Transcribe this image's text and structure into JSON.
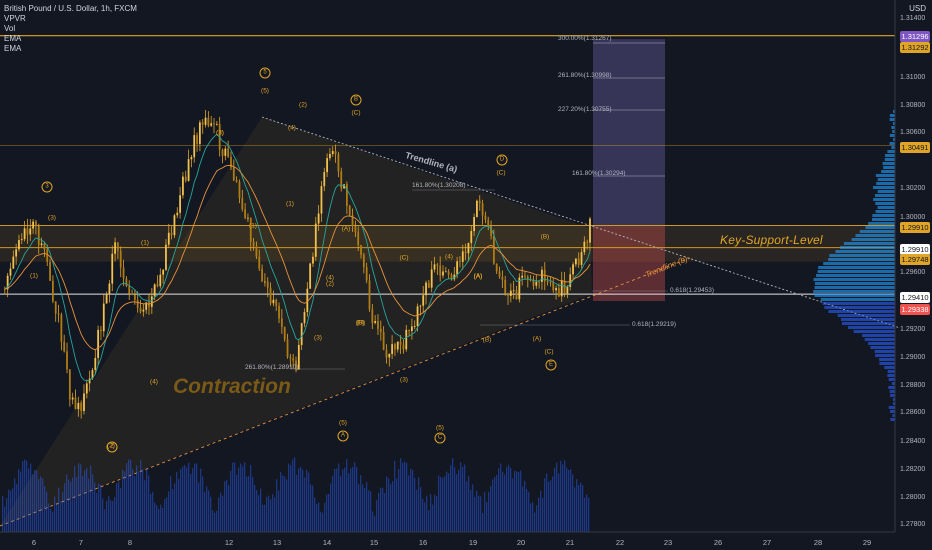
{
  "legend": {
    "symbol": "British Pound / U.S. Dollar, 1h, FXCM",
    "indicators": [
      "VPVR",
      "Vol",
      "EMA",
      "EMA"
    ]
  },
  "axis": {
    "currency": "USD",
    "price_ticks": [
      "1.31400",
      "1.31000",
      "1.30800",
      "1.30600",
      "1.30200",
      "1.30000",
      "1.29600",
      "1.29200",
      "1.29000",
      "1.28800",
      "1.28600",
      "1.28400",
      "1.28200",
      "1.28000",
      "1.27800"
    ],
    "date_ticks": [
      "6",
      "7",
      "8",
      "12",
      "13",
      "14",
      "15",
      "16",
      "19",
      "20",
      "21",
      "22",
      "23",
      "26",
      "27",
      "28",
      "29"
    ]
  },
  "price_tags": [
    {
      "label": "1.31296",
      "bg": "#7e57c2",
      "fg": "#ffffff"
    },
    {
      "label": "1.31292",
      "bg": "#e0a526",
      "fg": "#131722"
    },
    {
      "label": "1.30491",
      "bg": "#e0a526",
      "fg": "#131722"
    },
    {
      "label": "1.29910",
      "bg": "#e0a526",
      "fg": "#131722"
    },
    {
      "label": "1.29910",
      "bg": "#ffffff",
      "fg": "#131722"
    },
    {
      "label": "1.29748",
      "bg": "#e0a526",
      "fg": "#131722"
    },
    {
      "label": "1.29410",
      "bg": "#ffffff",
      "fg": "#131722"
    },
    {
      "label": "1.29338",
      "bg": "#ef5350",
      "fg": "#ffffff"
    }
  ],
  "annotations": {
    "key_support": "Key-Support-Level",
    "contraction": "Contraction",
    "trendline_a": "Trendline (a)",
    "trendline_b": "Trendline (b)"
  },
  "fib_labels": [
    "300.00%(1.31267)",
    "261.80%(1.30998)",
    "227.20%(1.30755)",
    "161.80%(1.30294)",
    "161.80%(1.30208)",
    "261.80%(1.28910)",
    "0.618(1.29453)",
    "0.618(1.29219)"
  ],
  "wave_labels": [
    {
      "text": "3",
      "circle": true
    },
    {
      "text": "(3)"
    },
    {
      "text": "(1)"
    },
    {
      "text": "(1)"
    },
    {
      "text": "(2)"
    },
    {
      "text": "(4)"
    },
    {
      "text": "2",
      "circle": true
    },
    {
      "text": "5",
      "circle": true
    },
    {
      "text": "(5)"
    },
    {
      "text": "(3)"
    },
    {
      "text": "(4)"
    },
    {
      "text": "(1)"
    },
    {
      "text": "(2)"
    },
    {
      "text": "(1)"
    },
    {
      "text": "(2)"
    },
    {
      "text": "(3)"
    },
    {
      "text": "(4)"
    },
    {
      "text": "(5)"
    },
    {
      "text": "A",
      "circle": true
    },
    {
      "text": "B",
      "circle": true
    },
    {
      "text": "(C)"
    },
    {
      "text": "(A)"
    },
    {
      "text": "(B)"
    },
    {
      "text": "(C)"
    },
    {
      "text": "(3)"
    },
    {
      "text": "(4)"
    },
    {
      "text": "(5)"
    },
    {
      "text": "C",
      "circle": true
    },
    {
      "text": "D",
      "circle": true
    },
    {
      "text": "(C)"
    },
    {
      "text": "(A)"
    },
    {
      "text": "(B)"
    },
    {
      "text": "(B)"
    },
    {
      "text": "(A)"
    },
    {
      "text": "(C)"
    },
    {
      "text": "E",
      "circle": true
    },
    {
      "text": "(B)"
    },
    {
      "text": "(A)"
    },
    {
      "text": "(3)"
    }
  ],
  "chart_data": {
    "type": "line",
    "ylim": [
      1.2775,
      1.3145
    ],
    "key_levels": [
      1.31292,
      1.30491,
      1.2991,
      1.29748,
      1.2941
    ],
    "price_path": [
      1.2945,
      1.2962,
      1.2985,
      1.299,
      1.296,
      1.292,
      1.287,
      1.2855,
      1.289,
      1.293,
      1.2975,
      1.2945,
      1.293,
      1.293,
      1.2955,
      1.299,
      1.302,
      1.305,
      1.307,
      1.3058,
      1.3035,
      1.301,
      1.2985,
      1.2955,
      1.2935,
      1.2905,
      1.289,
      1.2945,
      1.3005,
      1.3048,
      1.3025,
      1.299,
      1.2955,
      1.2915,
      1.2898,
      1.2905,
      1.291,
      1.2935,
      1.2958,
      1.2955,
      1.296,
      1.2975,
      1.301,
      1.299,
      1.295,
      1.2938,
      1.295,
      1.2945,
      1.2955,
      1.294,
      1.295,
      1.2965,
      1.299
    ],
    "target_box_top": 1.31267,
    "stop_box_bottom": 1.2936
  }
}
